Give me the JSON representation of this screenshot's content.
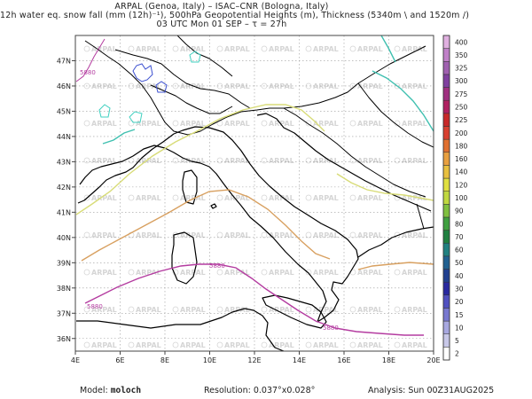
{
  "header": {
    "line1": "ARPAL (Genoa, Italy)  –  ISAC–CNR (Bologna, Italy)",
    "line2": "12h water eq. snow fall (mm (12h)⁻¹), 500hPa Geopotential Heights (m), Thickness (5340m \\ and 1520m /)",
    "line3": "03 UTC Mon 01 SEP  –  τ = 27h"
  },
  "map": {
    "lon_range": [
      4,
      20
    ],
    "lat_range": [
      35.5,
      48
    ],
    "lon_ticks": [
      "4E",
      "6E",
      "8E",
      "10E",
      "12E",
      "14E",
      "16E",
      "18E",
      "20E"
    ],
    "lat_ticks": [
      "36N",
      "37N",
      "38N",
      "39N",
      "40N",
      "41N",
      "42N",
      "43N",
      "44N",
      "45N",
      "46N",
      "47N"
    ],
    "watermark": "ARPAL",
    "contour_label": "5880",
    "colors": {
      "coast": "#000000",
      "geo_5880": "#b43ca0",
      "thick_yellow": "#d8dc78",
      "thick_orange": "#d8a060",
      "thick_cyan": "#40c0b0",
      "alps_blue": "#3c50d0",
      "alps_cyan": "#40d0c0",
      "gridline": "#9a9a9a"
    }
  },
  "colorbar": {
    "levels": [
      "2",
      "5",
      "10",
      "15",
      "20",
      "30",
      "40",
      "50",
      "60",
      "70",
      "80",
      "90",
      "100",
      "120",
      "140",
      "160",
      "180",
      "200",
      "225",
      "250",
      "275",
      "300",
      "325",
      "350",
      "400"
    ],
    "colors": [
      "#ffffff",
      "#c8c8e8",
      "#a8a8e0",
      "#7878d0",
      "#5050c0",
      "#2828a0",
      "#204090",
      "#206090",
      "#208080",
      "#208040",
      "#40a040",
      "#80c040",
      "#c0d840",
      "#e0e040",
      "#e8c040",
      "#e8a040",
      "#e07030",
      "#d84030",
      "#c82828",
      "#b02060",
      "#a03080",
      "#8040a0",
      "#a060b0",
      "#c080c8",
      "#e0b0e0"
    ]
  },
  "footer": {
    "model_label": "Model:",
    "model_value": "moloch",
    "resolution": "Resolution: 0.037°x0.028°",
    "analysis": "Analysis: Sun 00Z31AUG2025"
  }
}
